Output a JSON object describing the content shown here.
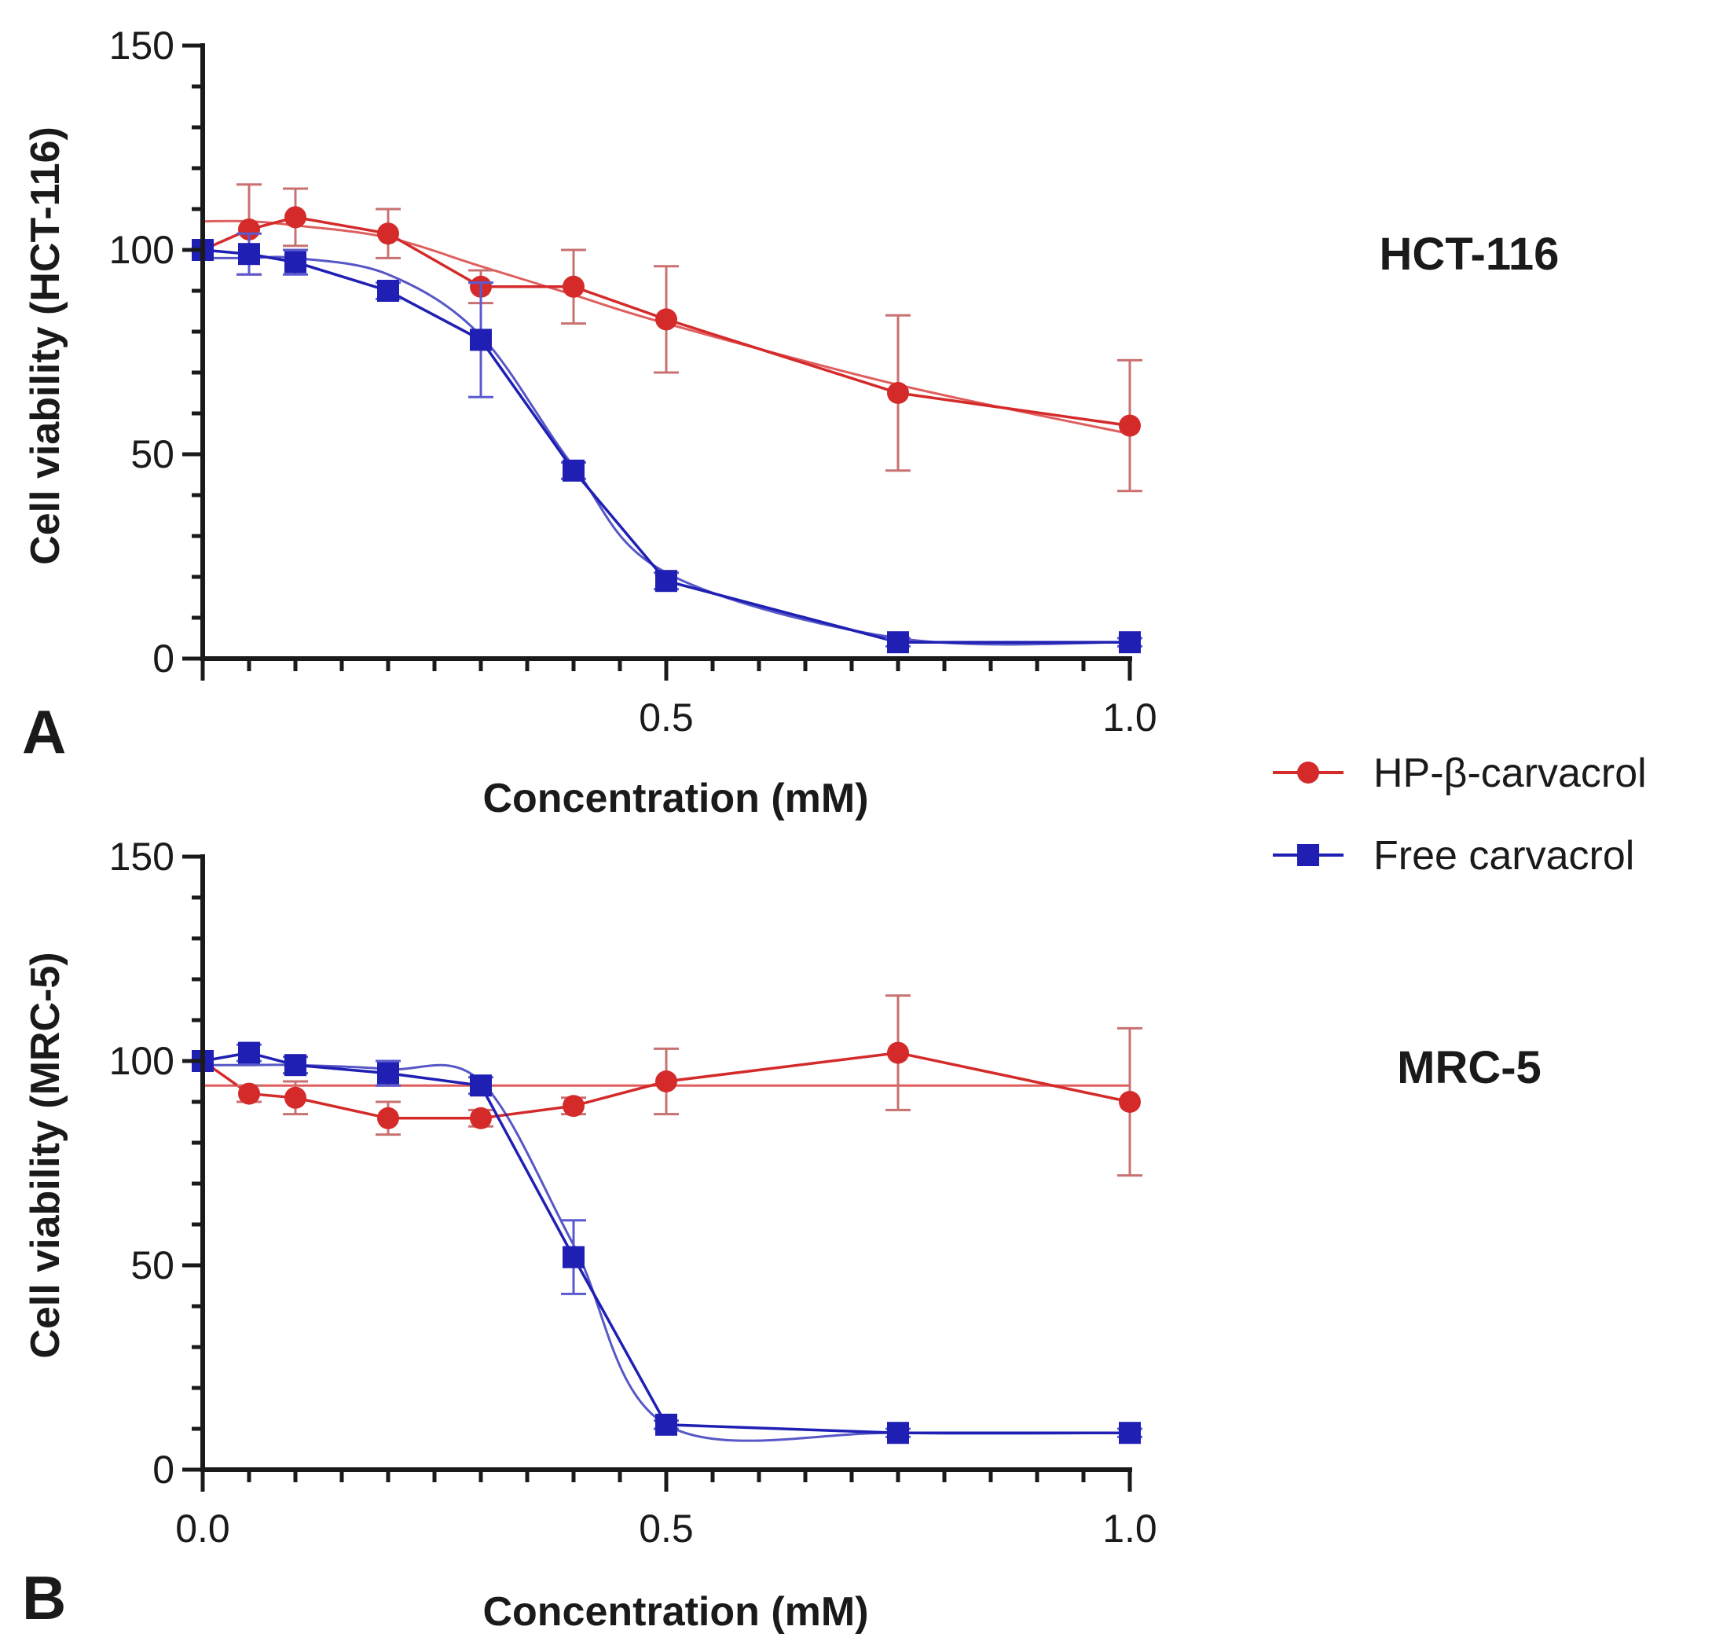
{
  "legend": {
    "items": [
      {
        "name": "HP-β-carvacrol",
        "color": "#d42a2a",
        "marker": "circle"
      },
      {
        "name": "Free carvacrol",
        "color": "#1f1fb4",
        "marker": "square"
      }
    ]
  },
  "chart_data": [
    {
      "type": "line",
      "panel_label": "A",
      "title": "HCT-116",
      "xlabel": "Concentration (mM)",
      "ylabel": "Cell viability (HCT-116)",
      "xlim": [
        0,
        1.0
      ],
      "ylim": [
        0,
        150
      ],
      "xticks": [
        {
          "value": 0.5,
          "label": "0.5"
        },
        {
          "value": 1.0,
          "label": "1.0"
        }
      ],
      "yticks": [
        {
          "value": 0,
          "label": "0"
        },
        {
          "value": 50,
          "label": "50"
        },
        {
          "value": 100,
          "label": "100"
        },
        {
          "value": 150,
          "label": "150"
        }
      ],
      "series": [
        {
          "name": "HP-β-carvacrol",
          "x": [
            0,
            0.05,
            0.1,
            0.2,
            0.3,
            0.4,
            0.5,
            0.75,
            1.0
          ],
          "y": [
            100,
            105,
            108,
            104,
            91,
            91,
            83,
            65,
            57
          ],
          "err": [
            0,
            11,
            7,
            6,
            4,
            9,
            13,
            19,
            16
          ],
          "fit": [
            107,
            107,
            106,
            103,
            96,
            89,
            82,
            67,
            55
          ]
        },
        {
          "name": "Free carvacrol",
          "x": [
            0,
            0.05,
            0.1,
            0.2,
            0.3,
            0.4,
            0.5,
            0.75,
            1.0
          ],
          "y": [
            100,
            99,
            97,
            90,
            78,
            46,
            19,
            4,
            4
          ],
          "err": [
            0,
            5,
            3,
            2,
            14,
            2,
            2,
            1,
            1
          ],
          "fit": [
            98,
            98,
            98,
            94,
            79,
            47,
            21,
            5,
            4
          ]
        }
      ]
    },
    {
      "type": "line",
      "panel_label": "B",
      "title": "MRC-5",
      "xlabel": "Concentration (mM)",
      "ylabel": "Cell viability (MRC-5)",
      "xlim": [
        0,
        1.0
      ],
      "ylim": [
        0,
        150
      ],
      "xticks": [
        {
          "value": 0.0,
          "label": "0.0"
        },
        {
          "value": 0.5,
          "label": "0.5"
        },
        {
          "value": 1.0,
          "label": "1.0"
        }
      ],
      "yticks": [
        {
          "value": 0,
          "label": "0"
        },
        {
          "value": 50,
          "label": "50"
        },
        {
          "value": 100,
          "label": "100"
        },
        {
          "value": 150,
          "label": "150"
        }
      ],
      "series": [
        {
          "name": "HP-β-carvacrol",
          "x": [
            0,
            0.05,
            0.1,
            0.2,
            0.3,
            0.4,
            0.5,
            0.75,
            1.0
          ],
          "y": [
            100,
            92,
            91,
            86,
            86,
            89,
            95,
            102,
            90
          ],
          "err": [
            0,
            2,
            4,
            4,
            2,
            2,
            8,
            14,
            18
          ],
          "fit": [
            94,
            94,
            94,
            94,
            94,
            94,
            94,
            94,
            94
          ]
        },
        {
          "name": "Free carvacrol",
          "x": [
            0,
            0.05,
            0.1,
            0.2,
            0.3,
            0.4,
            0.5,
            0.75,
            1.0
          ],
          "y": [
            100,
            102,
            99,
            97,
            94,
            52,
            11,
            9,
            9
          ],
          "err": [
            0,
            2,
            2,
            3,
            2,
            9,
            1,
            1,
            1
          ],
          "fit": [
            99,
            99,
            99,
            98,
            95,
            55,
            11,
            9,
            9
          ]
        }
      ]
    }
  ]
}
